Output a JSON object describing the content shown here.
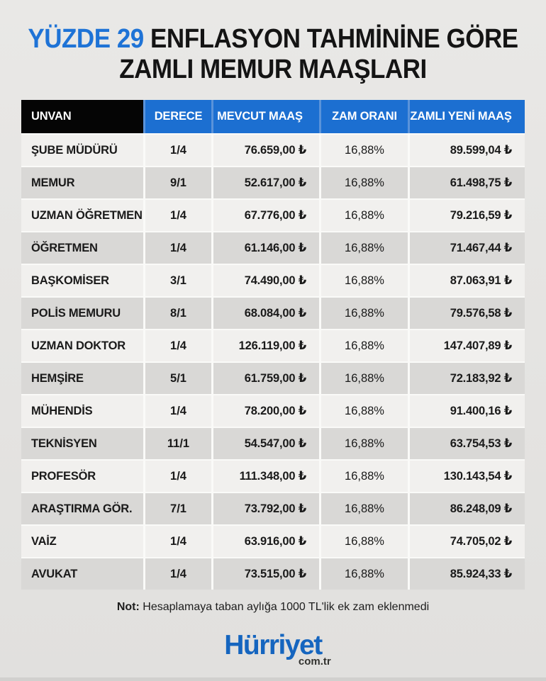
{
  "title": {
    "highlight": "YÜZDE 29",
    "line1_rest": "ENFLASYON TAHMİNİNE GÖRE",
    "line2": "ZAMLI MEMUR MAAŞLARI"
  },
  "colors": {
    "title_highlight_blue": "#1e73d6",
    "header_blue": "#1c6fd1",
    "header_black": "#050505",
    "header_separator_blue": "#5a93da",
    "row_light": "#f1f0ee",
    "row_dark": "#d9d8d6",
    "background_gray": "#e5e4e2",
    "logo_blue": "#1565bf"
  },
  "chart_data": {
    "type": "table",
    "title": "YÜZDE 29 ENFLASYON TAHMİNİNE GÖRE ZAMLI MEMUR MAAŞLARI",
    "columns": [
      "UNVAN",
      "DERECE",
      "MEVCUT MAAŞ",
      "ZAM ORANI",
      "ZAMLI YENİ MAAŞ"
    ],
    "rows": [
      [
        "ŞUBE MÜDÜRÜ",
        "1/4",
        "76.659,00 ₺",
        "16,88%",
        "89.599,04 ₺"
      ],
      [
        "MEMUR",
        "9/1",
        "52.617,00 ₺",
        "16,88%",
        "61.498,75 ₺"
      ],
      [
        "UZMAN ÖĞRETMEN",
        "1/4",
        "67.776,00 ₺",
        "16,88%",
        "79.216,59 ₺"
      ],
      [
        "ÖĞRETMEN",
        "1/4",
        "61.146,00 ₺",
        "16,88%",
        "71.467,44 ₺"
      ],
      [
        "BAŞKOMİSER",
        "3/1",
        "74.490,00 ₺",
        "16,88%",
        "87.063,91 ₺"
      ],
      [
        "POLİS MEMURU",
        "8/1",
        "68.084,00 ₺",
        "16,88%",
        "79.576,58 ₺"
      ],
      [
        "UZMAN DOKTOR",
        "1/4",
        "126.119,00 ₺",
        "16,88%",
        "147.407,89 ₺"
      ],
      [
        "HEMŞİRE",
        "5/1",
        "61.759,00 ₺",
        "16,88%",
        "72.183,92 ₺"
      ],
      [
        "MÜHENDİS",
        "1/4",
        "78.200,00 ₺",
        "16,88%",
        "91.400,16 ₺"
      ],
      [
        "TEKNİSYEN",
        "11/1",
        "54.547,00 ₺",
        "16,88%",
        "63.754,53 ₺"
      ],
      [
        "PROFESÖR",
        "1/4",
        "111.348,00 ₺",
        "16,88%",
        "130.143,54 ₺"
      ],
      [
        "ARAŞTIRMA GÖR.",
        "7/1",
        "73.792,00 ₺",
        "16,88%",
        "86.248,09 ₺"
      ],
      [
        "VAİZ",
        "1/4",
        "63.916,00 ₺",
        "16,88%",
        "74.705,02 ₺"
      ],
      [
        "AVUKAT",
        "1/4",
        "73.515,00 ₺",
        "16,88%",
        "85.924,33 ₺"
      ]
    ],
    "inflation_assumption_percent": 29,
    "raise_rate_percent": "16,88%"
  },
  "note": {
    "label": "Not:",
    "text": "Hesaplamaya taban aylığa 1000 TL'lik ek zam eklenmedi"
  },
  "footer": {
    "logo_text": "Hürriyet",
    "logo_suffix": "com.tr"
  }
}
